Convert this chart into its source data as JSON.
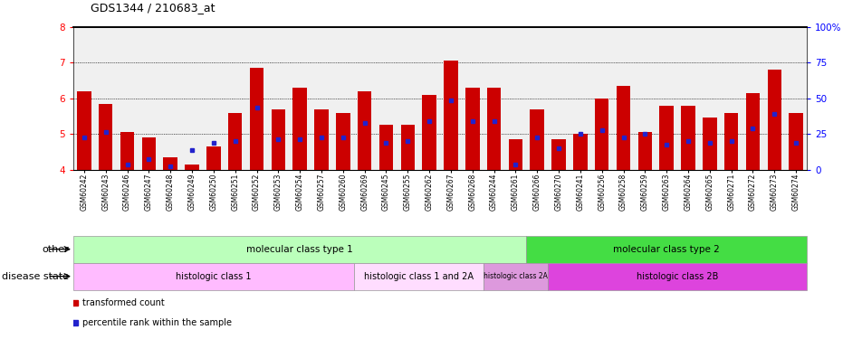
{
  "title": "GDS1344 / 210683_at",
  "samples": [
    "GSM60242",
    "GSM60243",
    "GSM60246",
    "GSM60247",
    "GSM60248",
    "GSM60249",
    "GSM60250",
    "GSM60251",
    "GSM60252",
    "GSM60253",
    "GSM60254",
    "GSM60257",
    "GSM60260",
    "GSM60269",
    "GSM60245",
    "GSM60255",
    "GSM60262",
    "GSM60267",
    "GSM60268",
    "GSM60244",
    "GSM60261",
    "GSM60266",
    "GSM60270",
    "GSM60241",
    "GSM60256",
    "GSM60258",
    "GSM60259",
    "GSM60263",
    "GSM60264",
    "GSM60265",
    "GSM60271",
    "GSM60272",
    "GSM60273",
    "GSM60274"
  ],
  "bar_values": [
    6.2,
    5.85,
    5.05,
    4.9,
    4.35,
    4.15,
    4.65,
    5.6,
    6.85,
    5.7,
    6.3,
    5.7,
    5.6,
    6.2,
    5.25,
    5.25,
    6.1,
    7.05,
    6.3,
    6.3,
    4.85,
    5.7,
    4.85,
    5.0,
    6.0,
    6.35,
    5.05,
    5.8,
    5.8,
    5.45,
    5.6,
    6.15,
    6.8,
    5.6
  ],
  "percentile_values": [
    4.9,
    5.05,
    4.15,
    4.3,
    4.1,
    4.55,
    4.75,
    4.8,
    5.75,
    4.85,
    4.85,
    4.9,
    4.9,
    5.3,
    4.75,
    4.8,
    5.35,
    5.95,
    5.35,
    5.35,
    4.15,
    4.9,
    4.6,
    5.0,
    5.1,
    4.9,
    5.0,
    4.7,
    4.8,
    4.75,
    4.8,
    5.15,
    5.55,
    4.75
  ],
  "ylim": [
    4.0,
    8.0
  ],
  "yticks": [
    4,
    5,
    6,
    7,
    8
  ],
  "right_yticks": [
    0,
    25,
    50,
    75,
    100
  ],
  "right_yticklabels": [
    "0",
    "25",
    "50",
    "75",
    "100%"
  ],
  "bar_color": "#cc0000",
  "percentile_color": "#2222cc",
  "groups_other": [
    {
      "label": "molecular class type 1",
      "start": 0,
      "end": 21,
      "color": "#bbffbb"
    },
    {
      "label": "molecular class type 2",
      "start": 21,
      "end": 34,
      "color": "#44dd44"
    }
  ],
  "groups_disease": [
    {
      "label": "histologic class 1",
      "start": 0,
      "end": 13,
      "color": "#ffbbff"
    },
    {
      "label": "histologic class 1 and 2A",
      "start": 13,
      "end": 19,
      "color": "#ffddff"
    },
    {
      "label": "histologic class 2A",
      "start": 19,
      "end": 22,
      "color": "#dd99dd"
    },
    {
      "label": "histologic class 2B",
      "start": 22,
      "end": 34,
      "color": "#dd44dd"
    }
  ],
  "other_label": "other",
  "disease_label": "disease state",
  "legend_items": [
    {
      "color": "#cc0000",
      "label": "transformed count"
    },
    {
      "color": "#2222cc",
      "label": "percentile rank within the sample"
    }
  ]
}
